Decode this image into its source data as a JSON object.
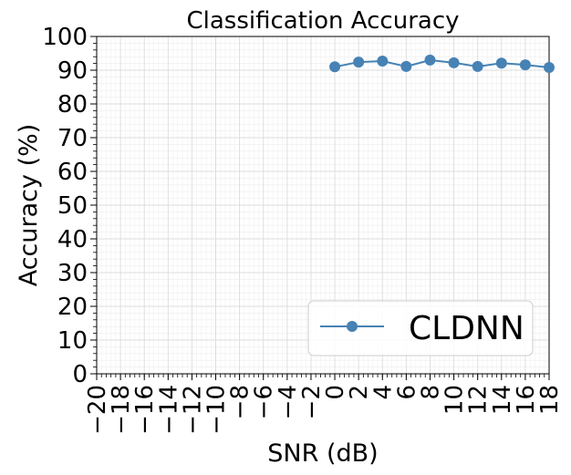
{
  "chart_data": {
    "type": "line",
    "title": "Classification Accuracy",
    "xlabel": "SNR (dB)",
    "ylabel": "Accuracy (%)",
    "xlim": [
      -20,
      18
    ],
    "ylim": [
      0,
      100
    ],
    "x_ticks": [
      -20,
      -18,
      -16,
      -14,
      -12,
      -10,
      -8,
      -6,
      -4,
      -2,
      0,
      2,
      4,
      6,
      8,
      10,
      12,
      14,
      16,
      18
    ],
    "x_tick_labels": [
      "−20",
      "−18",
      "−16",
      "−14",
      "−12",
      "−10",
      "−8",
      "−6",
      "−4",
      "−2",
      "0",
      "2",
      "4",
      "6",
      "8",
      "10",
      "12",
      "14",
      "16",
      "18"
    ],
    "y_ticks": [
      0,
      10,
      20,
      30,
      40,
      50,
      60,
      70,
      80,
      90,
      100
    ],
    "y_tick_labels": [
      "0",
      "10",
      "20",
      "30",
      "40",
      "50",
      "60",
      "70",
      "80",
      "90",
      "100"
    ],
    "grid": true,
    "legend_position": "bottom-right",
    "series": [
      {
        "name": "CLDNN",
        "color": "#4682b4",
        "marker": "circle",
        "x": [
          0,
          2,
          4,
          6,
          8,
          10,
          12,
          14,
          16,
          18
        ],
        "values": [
          91.0,
          92.4,
          92.7,
          91.1,
          93.0,
          92.2,
          91.1,
          92.1,
          91.6,
          90.8
        ]
      }
    ]
  }
}
